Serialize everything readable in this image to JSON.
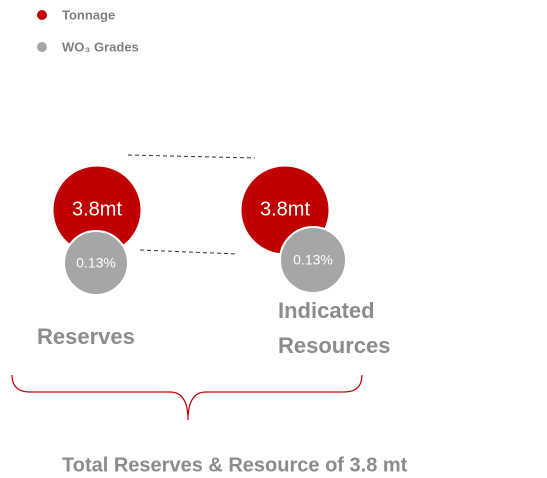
{
  "legend": [
    {
      "label": "Tonnage",
      "color": "#c00000"
    },
    {
      "label": "WO₃ Grades",
      "color": "#a6a6a6"
    }
  ],
  "groups": [
    {
      "label": [
        "Reserves"
      ],
      "tonnage": "3.8mt",
      "grade": "0.13%"
    },
    {
      "label": [
        "Indicated",
        "Resources"
      ],
      "tonnage": "3.8mt",
      "grade": "0.13%"
    }
  ],
  "summary": "Total Reserves & Resource of 3.8 mt"
}
